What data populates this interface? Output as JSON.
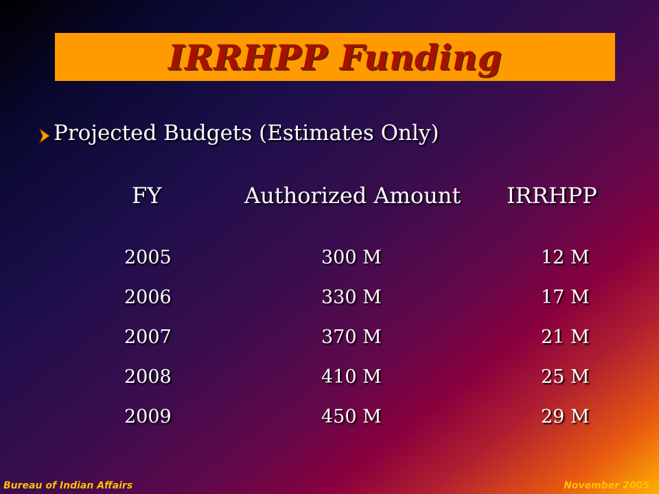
{
  "title": "IRRHPP Funding",
  "bullet": {
    "icon": "arrow-bullet-icon",
    "color": "#ffa000",
    "text": "Projected Budgets (Estimates Only)"
  },
  "table": {
    "headers": {
      "fy": "FY",
      "authorized": "Authorized Amount",
      "irrhpp": "IRRHPP"
    },
    "rows": [
      {
        "fy": "2005",
        "authorized": "300 M",
        "irrhpp": "12 M"
      },
      {
        "fy": "2006",
        "authorized": "330 M",
        "irrhpp": "17 M"
      },
      {
        "fy": "2007",
        "authorized": "370 M",
        "irrhpp": "21 M"
      },
      {
        "fy": "2008",
        "authorized": "410 M",
        "irrhpp": "25 M"
      },
      {
        "fy": "2009",
        "authorized": "450 M",
        "irrhpp": "29 M"
      }
    ]
  },
  "footer": {
    "left": "Bureau of Indian Affairs",
    "right": "November 2005"
  },
  "colors": {
    "title_bar": "#ff9a00",
    "title_text": "#a81000",
    "footer_text": "#ffc000"
  }
}
